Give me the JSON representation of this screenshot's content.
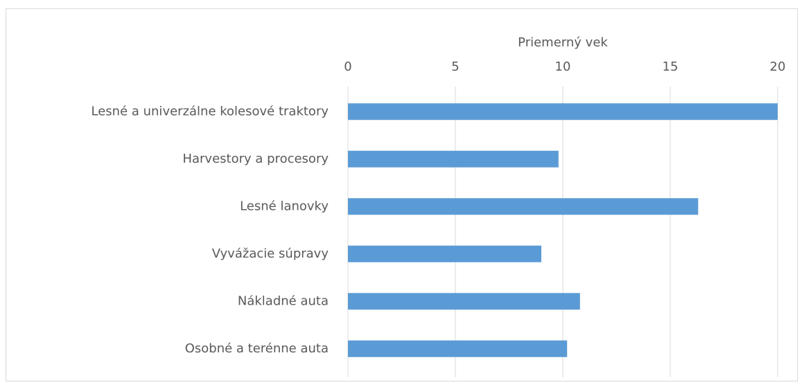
{
  "chart_data": {
    "type": "bar",
    "orientation": "horizontal",
    "x_label": "Priemerný vek",
    "categories": [
      "Lesné a univerzálne kolesové traktory",
      "Harvestory a procesory",
      "Lesné lanovky",
      "Vyvážacie súpravy",
      "Nákladné auta",
      "Osobné a terénne auta"
    ],
    "values": [
      20,
      9.8,
      16.3,
      9.0,
      10.8,
      10.2
    ],
    "color": "#5b9bd5",
    "xlim": [
      0,
      20
    ],
    "xticks": [
      0,
      5,
      10,
      15,
      20
    ],
    "grid": true
  }
}
